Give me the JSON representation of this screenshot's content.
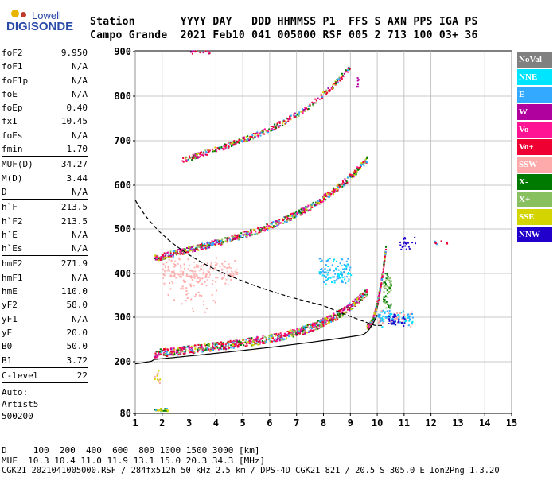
{
  "logo": {
    "top": "Lowell",
    "main": "DIGISONDE"
  },
  "header": {
    "labels": "Station       YYYY DAY   DDD HHMMSS P1  FFS S AXN PPS IGA PS",
    "values": "Campo Grande  2021 Feb10 041 005000 RSF 005 2 713 100 03+ 36"
  },
  "params": {
    "group1": [
      {
        "k": "foF2",
        "v": "9.950"
      },
      {
        "k": "foF1",
        "v": "N/A"
      },
      {
        "k": "foF1p",
        "v": "N/A"
      },
      {
        "k": "foE",
        "v": "N/A"
      },
      {
        "k": "foEp",
        "v": "0.40"
      },
      {
        "k": "fxI",
        "v": "10.45"
      },
      {
        "k": "foEs",
        "v": "N/A"
      },
      {
        "k": "fmin",
        "v": "1.70"
      }
    ],
    "group2": [
      {
        "k": "MUF(D)",
        "v": "34.27"
      },
      {
        "k": "M(D)",
        "v": "3.44"
      },
      {
        "k": "D",
        "v": "N/A"
      }
    ],
    "group3": [
      {
        "k": "h`F",
        "v": "213.5"
      },
      {
        "k": "h`F2",
        "v": "213.5"
      },
      {
        "k": "h`E",
        "v": "N/A"
      },
      {
        "k": "h`Es",
        "v": "N/A"
      }
    ],
    "group4": [
      {
        "k": "hmF2",
        "v": "271.9"
      },
      {
        "k": "hmF1",
        "v": "N/A"
      },
      {
        "k": "hmE",
        "v": "110.0"
      },
      {
        "k": "yF2",
        "v": "58.0"
      },
      {
        "k": "yF1",
        "v": "N/A"
      },
      {
        "k": "yE",
        "v": "20.0"
      },
      {
        "k": "B0",
        "v": "50.0"
      },
      {
        "k": "B1",
        "v": "3.72"
      }
    ],
    "group5": [
      {
        "k": "C-level",
        "v": "22"
      }
    ],
    "auto": [
      "Auto:",
      "Artist5",
      "500200"
    ]
  },
  "legend": [
    {
      "label": "NoVal",
      "color": "#808080"
    },
    {
      "label": "NNE",
      "color": "#00e5ff"
    },
    {
      "label": "E",
      "color": "#33aaff"
    },
    {
      "label": "W",
      "color": "#b0009e"
    },
    {
      "label": "Vo-",
      "color": "#ff1493"
    },
    {
      "label": "Vo+",
      "color": "#ee0033"
    },
    {
      "label": "SSW",
      "color": "#ffaaaa"
    },
    {
      "label": "X-",
      "color": "#007a00"
    },
    {
      "label": "X+",
      "color": "#88c060"
    },
    {
      "label": "SSE",
      "color": "#d4d400"
    },
    {
      "label": "NNW",
      "color": "#2200cc"
    }
  ],
  "axes": {
    "y_ticks": [
      "900",
      "800",
      "700",
      "600",
      "500",
      "400",
      "300",
      "200",
      "80"
    ],
    "x_ticks": [
      "1",
      "2",
      "3",
      "4",
      "5",
      "6",
      "7",
      "8",
      "9",
      "10",
      "11",
      "12",
      "13",
      "14",
      "15"
    ]
  },
  "bottom": {
    "line1": "D     100  200  400  600  800 1000 1500 3000 [km]",
    "line2": "MUF  10.3 10.4 11.0 11.9 13.1 15.0 20.3 34.3 [MHz]",
    "line3": "CGK21_2021041005000.RSF / 284fx512h 50 kHz 2.5 km / DPS-4D CGK21 821 / 20.5 S 305.0 E Ion2Png 1.3.20"
  }
}
